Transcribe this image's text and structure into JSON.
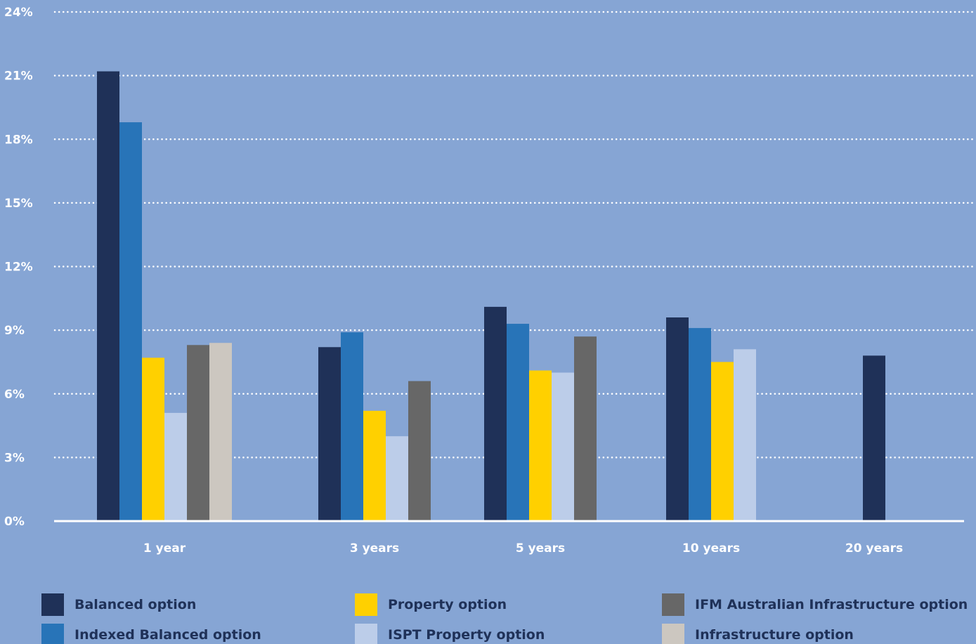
{
  "chart_data": {
    "type": "bar",
    "title": "",
    "xlabel": "",
    "ylabel": "",
    "ylim": [
      0,
      24
    ],
    "yticks": [
      0,
      3,
      6,
      9,
      12,
      15,
      18,
      21,
      24
    ],
    "ytick_labels": [
      "0%",
      "3%",
      "6%",
      "9%",
      "12%",
      "15%",
      "18%",
      "21%",
      "24%"
    ],
    "grid": true,
    "legend_position": "bottom",
    "categories": [
      "1 year",
      "3 years",
      "5 years",
      "10 years",
      "20 years"
    ],
    "series": [
      {
        "name": "Balanced option",
        "color": "#1f3158",
        "values": [
          21.2,
          8.2,
          10.1,
          9.6,
          7.8
        ]
      },
      {
        "name": "Indexed Balanced option",
        "color": "#2874b8",
        "values": [
          18.8,
          8.9,
          9.3,
          9.1,
          null
        ]
      },
      {
        "name": "Property option",
        "color": "#ffd000",
        "values": [
          7.7,
          5.2,
          7.1,
          7.5,
          null
        ]
      },
      {
        "name": "ISPT Property option",
        "color": "#bccde9",
        "values": [
          5.1,
          4.0,
          7.0,
          8.1,
          null
        ]
      },
      {
        "name": "IFM Australian Infrastructure option",
        "color": "#676767",
        "values": [
          8.3,
          6.6,
          8.7,
          null,
          null
        ]
      },
      {
        "name": "Infrastructure option",
        "color": "#ccc7c0",
        "values": [
          8.4,
          null,
          null,
          null,
          null
        ]
      }
    ]
  }
}
